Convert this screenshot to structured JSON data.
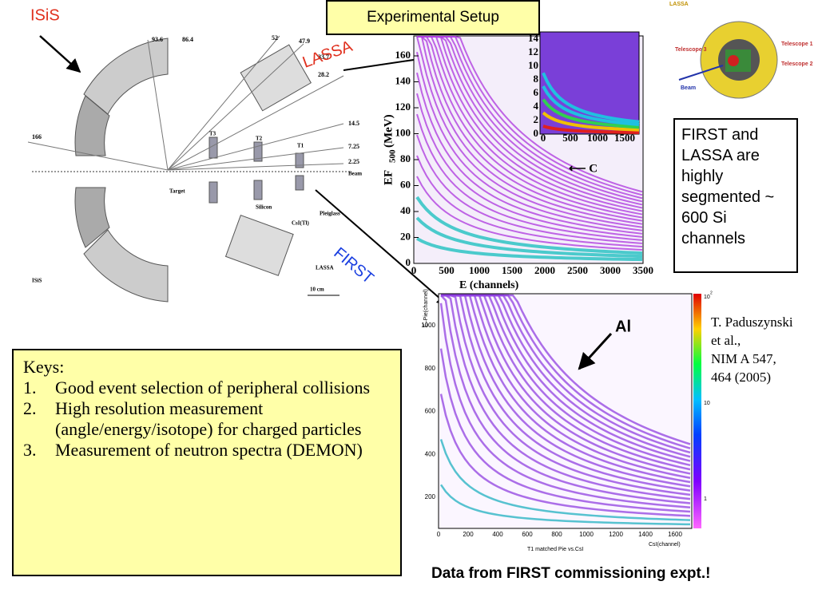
{
  "labels": {
    "isis": "ISiS",
    "lassa": "LASSA",
    "first": "FIRST",
    "al": "Al"
  },
  "title": "Experimental Setup",
  "diagram": {
    "dims": [
      "93.6",
      "86.4",
      "52",
      "47.9",
      "33.7",
      "28.2",
      "14.5",
      "7.25",
      "2.25",
      "166"
    ],
    "parts": [
      "Beam",
      "T3",
      "T2",
      "T1",
      "Target",
      "Silicon",
      "CsI(Tl)",
      "Pleiglass",
      "LASSA",
      "ISiS",
      "10 cm"
    ]
  },
  "setup_image": {
    "labels": [
      "LASSA",
      "Telescope 1",
      "Telescope 2",
      "Telescope 3",
      "Beam"
    ]
  },
  "upper_plot": {
    "yticks": [
      "0",
      "20",
      "40",
      "60",
      "80",
      "100",
      "120",
      "140",
      "160"
    ],
    "xticks": [
      "0",
      "500",
      "1000",
      "1500",
      "2000",
      "2500",
      "3000",
      "3500"
    ],
    "ylabel": "EF",
    "ylabel_sub": "500",
    "ylabel_unit": "(MeV)",
    "xlabel": "E        (channels)",
    "inset_yticks": [
      "0",
      "2",
      "4",
      "6",
      "8",
      "10",
      "12",
      "14"
    ],
    "inset_xticks": [
      "0",
      "500",
      "1000",
      "1500"
    ],
    "annotation": "⟵ C"
  },
  "lower_plot": {
    "yticks": [
      "200",
      "400",
      "600",
      "800",
      "1000"
    ],
    "xticks": [
      "0",
      "200",
      "400",
      "600",
      "800",
      "1000",
      "1200",
      "1400",
      "1600"
    ],
    "ylabel": "E–Pie(channel)",
    "xlabel": "CsI(channel)",
    "caption": "T1 matched Pie vs.CsI",
    "colorbar": {
      "top": "10",
      "top_sup": "2",
      "mid": "10",
      "bottom": "1"
    }
  },
  "segmented_note": "FIRST and LASSA are highly segmented ~ 600 Si channels",
  "citation": [
    "T. Paduszynski",
    "et al.,",
    "NIM A 547,",
    "464 (2005)"
  ],
  "keys": {
    "heading": "Keys:",
    "items": [
      "Good event selection of peripheral collisions",
      "High resolution measurement (angle/energy/isotope) for charged particles",
      "Measurement of neutron spectra (DEMON)"
    ],
    "numbers": [
      "1.",
      "2.",
      "3."
    ]
  },
  "footer": "Data from FIRST commissioning expt.!"
}
